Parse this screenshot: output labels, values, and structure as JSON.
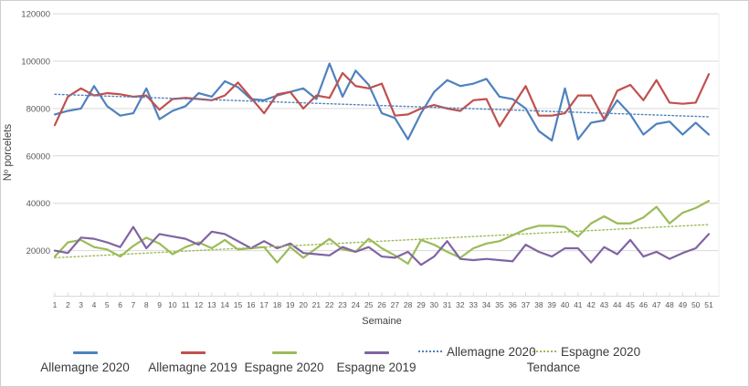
{
  "chart_data": {
    "type": "line",
    "title": "",
    "xlabel": "Semaine",
    "ylabel": "Nº porcelets",
    "ylim": [
      0,
      120000
    ],
    "ytick_interval": 20000,
    "grid": "horizontal",
    "legend_position": "bottom",
    "x": [
      1,
      2,
      3,
      4,
      5,
      6,
      7,
      8,
      9,
      10,
      11,
      12,
      13,
      14,
      15,
      16,
      17,
      18,
      19,
      20,
      21,
      22,
      23,
      24,
      25,
      26,
      27,
      28,
      29,
      30,
      31,
      32,
      33,
      34,
      35,
      36,
      37,
      38,
      39,
      40,
      41,
      42,
      43,
      44,
      45,
      46,
      47,
      48,
      49,
      50,
      51
    ],
    "series": [
      {
        "name": "Allemagne 2020",
        "color": "#4F81BD",
        "style": "solid",
        "values": [
          77500,
          79000,
          80000,
          89500,
          81000,
          77000,
          78000,
          88500,
          75500,
          79000,
          81000,
          86500,
          85000,
          91500,
          89000,
          84000,
          83500,
          85500,
          87000,
          88500,
          84000,
          99000,
          85000,
          96000,
          90000,
          78000,
          76000,
          67000,
          78000,
          87000,
          92000,
          89500,
          90500,
          92500,
          85000,
          84000,
          80000,
          70500,
          66500,
          88500,
          67000,
          74000,
          75000,
          83500,
          77500,
          69000,
          73500,
          74500,
          69000,
          74000,
          69000
        ]
      },
      {
        "name": "Allemagne 2019",
        "color": "#C0504D",
        "style": "solid",
        "values": [
          73000,
          85000,
          88500,
          85500,
          86500,
          86000,
          85000,
          85500,
          79500,
          84000,
          84500,
          84000,
          83500,
          85500,
          91000,
          84500,
          78000,
          86000,
          87000,
          80000,
          85500,
          84500,
          95000,
          89500,
          88500,
          90500,
          77000,
          77500,
          80000,
          81500,
          80000,
          79000,
          83500,
          84000,
          72500,
          81000,
          89500,
          77000,
          77000,
          78000,
          85500,
          85500,
          75500,
          87500,
          90000,
          83500,
          92000,
          82500,
          82000,
          82500,
          94500
        ]
      },
      {
        "name": "Espagne 2020",
        "color": "#9BBB59",
        "style": "solid",
        "values": [
          17500,
          23500,
          24500,
          21500,
          20500,
          17500,
          22000,
          25500,
          23000,
          18500,
          21500,
          23500,
          21000,
          24500,
          20500,
          21000,
          21500,
          15000,
          21500,
          17000,
          21000,
          25000,
          20500,
          19500,
          25000,
          21000,
          18000,
          14500,
          24500,
          22500,
          19500,
          17000,
          21000,
          23000,
          24000,
          26500,
          29000,
          30500,
          30500,
          30000,
          26000,
          31500,
          34500,
          31500,
          31500,
          34000,
          38500,
          31500,
          36000,
          38000,
          41000
        ]
      },
      {
        "name": "Espagne 2019",
        "color": "#8064A2",
        "style": "solid",
        "values": [
          20000,
          19000,
          25500,
          25000,
          23500,
          21500,
          30000,
          21000,
          27000,
          26000,
          25000,
          22500,
          28000,
          27000,
          24000,
          21000,
          24000,
          21000,
          23000,
          19000,
          18500,
          18000,
          21500,
          19500,
          21500,
          17500,
          17000,
          19500,
          14000,
          17500,
          24000,
          16500,
          16000,
          16500,
          16000,
          15500,
          22500,
          19500,
          17500,
          21000,
          21000,
          15000,
          21500,
          18500,
          24500,
          17500,
          19500,
          16500,
          19000,
          21000,
          27000
        ]
      },
      {
        "name": "Allemagne 2020",
        "color": "#4F81BD",
        "style": "dotted",
        "role": "trend",
        "trend_endpoints": [
          86000,
          76500
        ]
      },
      {
        "name": "Espagne 2020",
        "color": "#9BBB59",
        "style": "dotted",
        "role": "trend",
        "trend_endpoints": [
          17000,
          31000
        ]
      }
    ]
  },
  "legend": {
    "entries": [
      {
        "label": "Allemagne 2020",
        "color": "#4F81BD"
      },
      {
        "label": "Allemagne 2019",
        "color": "#C0504D"
      },
      {
        "label": "Espagne 2020",
        "color": "#9BBB59"
      },
      {
        "label": "Espagne 2019",
        "color": "#8064A2"
      }
    ],
    "trend_entries": [
      {
        "label": "Allemagne 2020",
        "color": "#4F81BD"
      },
      {
        "label": "Espagne 2020",
        "color": "#9BBB59"
      }
    ],
    "trend_caption": "Tendance"
  }
}
